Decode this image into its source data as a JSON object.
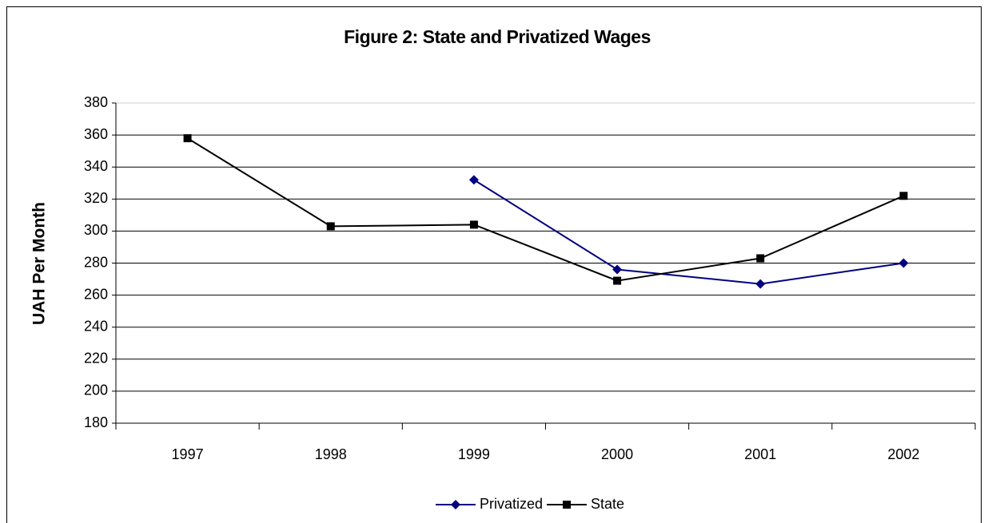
{
  "chart_data": {
    "type": "line",
    "title": "Figure 2: State and Privatized Wages",
    "y_label": "UAH Per Month",
    "categories": [
      "1997",
      "1998",
      "1999",
      "2000",
      "2001",
      "2002"
    ],
    "series": [
      {
        "name": "Privatized",
        "color": "#000080",
        "marker": "diamond",
        "values": [
          null,
          null,
          332,
          276,
          267,
          280
        ]
      },
      {
        "name": "State",
        "color": "#000000",
        "marker": "square",
        "values": [
          358,
          303,
          304,
          269,
          283,
          322
        ]
      }
    ],
    "ylim": [
      180,
      380
    ],
    "yticks": [
      180,
      200,
      220,
      240,
      260,
      280,
      300,
      320,
      340,
      360,
      380
    ],
    "grid": true,
    "legend": "bottom"
  }
}
